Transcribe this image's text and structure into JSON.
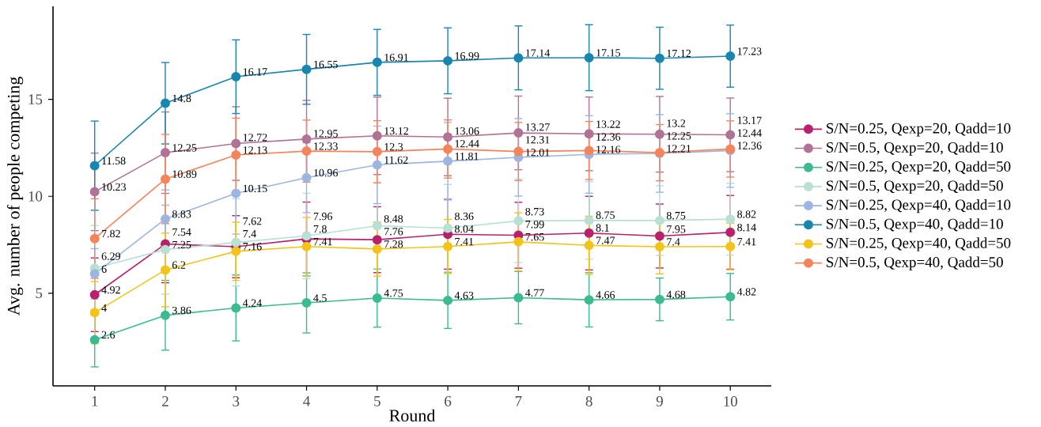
{
  "chart_data": {
    "type": "line",
    "xlabel": "Round",
    "ylabel": "Avg. number of people competing",
    "x": [
      1,
      2,
      3,
      4,
      5,
      6,
      7,
      8,
      9,
      10
    ],
    "xlim": [
      0.41,
      10.58
    ],
    "ylim": [
      0.22,
      19.8
    ],
    "xticks": [
      1,
      2,
      3,
      4,
      5,
      6,
      7,
      8,
      9,
      10
    ],
    "yticks": [
      5,
      10,
      15
    ],
    "legend": "right",
    "marker": "circle",
    "line_style": "solid",
    "data_labels": true,
    "series": [
      {
        "name": "S/N=0.25, Qexp=20, Qadd=10",
        "color": "#b8226c",
        "values": [
          4.92,
          7.54,
          7.4,
          7.8,
          7.76,
          8.04,
          7.99,
          8.1,
          7.95,
          8.14
        ],
        "errors": [
          1.9,
          2.0,
          1.6,
          1.9,
          1.7,
          1.8,
          1.7,
          1.9,
          1.65,
          1.9
        ]
      },
      {
        "name": "S/N=0.5, Qexp=20, Qadd=10",
        "color": "#b07396",
        "values": [
          10.23,
          12.25,
          12.72,
          12.95,
          13.12,
          13.06,
          13.27,
          13.22,
          13.2,
          13.17
        ],
        "errors": [
          2.0,
          2.1,
          1.9,
          2.0,
          2.0,
          2.0,
          1.9,
          1.9,
          1.95,
          1.9
        ]
      },
      {
        "name": "S/N=0.25, Qexp=20, Qadd=50",
        "color": "#3bbb8f",
        "values": [
          2.6,
          3.86,
          4.24,
          4.5,
          4.75,
          4.63,
          4.77,
          4.66,
          4.68,
          4.82
        ],
        "errors": [
          1.4,
          1.8,
          1.7,
          1.55,
          1.5,
          1.45,
          1.35,
          1.4,
          1.1,
          1.2
        ]
      },
      {
        "name": "S/N=0.5, Qexp=20, Qadd=50",
        "color": "#b8e0d3",
        "values": [
          6.29,
          7.25,
          7.62,
          7.96,
          8.48,
          8.36,
          8.73,
          8.75,
          8.75,
          8.82
        ],
        "errors": [
          2.2,
          2.3,
          2.25,
          2.2,
          2.2,
          2.25,
          2.15,
          2.0,
          1.8,
          1.85
        ]
      },
      {
        "name": "S/N=0.25, Qexp=40, Qadd=10",
        "color": "#9db6e1",
        "values": [
          6,
          8.83,
          10.15,
          10.96,
          11.62,
          11.81,
          12.01,
          12.16,
          12.21,
          12.36
        ],
        "errors": [
          1.3,
          1.5,
          2.1,
          1.8,
          2.0,
          2.0,
          2.0,
          2.0,
          2.0,
          1.9
        ]
      },
      {
        "name": "S/N=0.5, Qexp=40, Qadd=10",
        "color": "#1986b0",
        "values": [
          11.58,
          14.8,
          16.17,
          16.55,
          16.91,
          16.99,
          17.14,
          17.15,
          17.12,
          17.23
        ],
        "errors": [
          2.3,
          2.1,
          1.9,
          1.8,
          1.7,
          1.7,
          1.65,
          1.7,
          1.6,
          1.6
        ]
      },
      {
        "name": "S/N=0.25, Qexp=40, Qadd=50",
        "color": "#f2c41a",
        "values": [
          4,
          6.2,
          7.16,
          7.41,
          7.28,
          7.41,
          7.65,
          7.47,
          7.4,
          7.41
        ],
        "errors": [
          1.6,
          1.9,
          1.5,
          1.5,
          1.4,
          1.4,
          1.5,
          1.5,
          1.4,
          1.2
        ]
      },
      {
        "name": "S/N=0.5, Qexp=40, Qadd=50",
        "color": "#f5845b",
        "values": [
          7.82,
          10.89,
          12.13,
          12.33,
          12.3,
          12.44,
          12.31,
          12.36,
          12.25,
          12.44
        ],
        "errors": [
          2.05,
          2.3,
          1.9,
          1.6,
          1.6,
          1.5,
          1.5,
          1.5,
          1.45,
          1.45
        ]
      }
    ]
  }
}
